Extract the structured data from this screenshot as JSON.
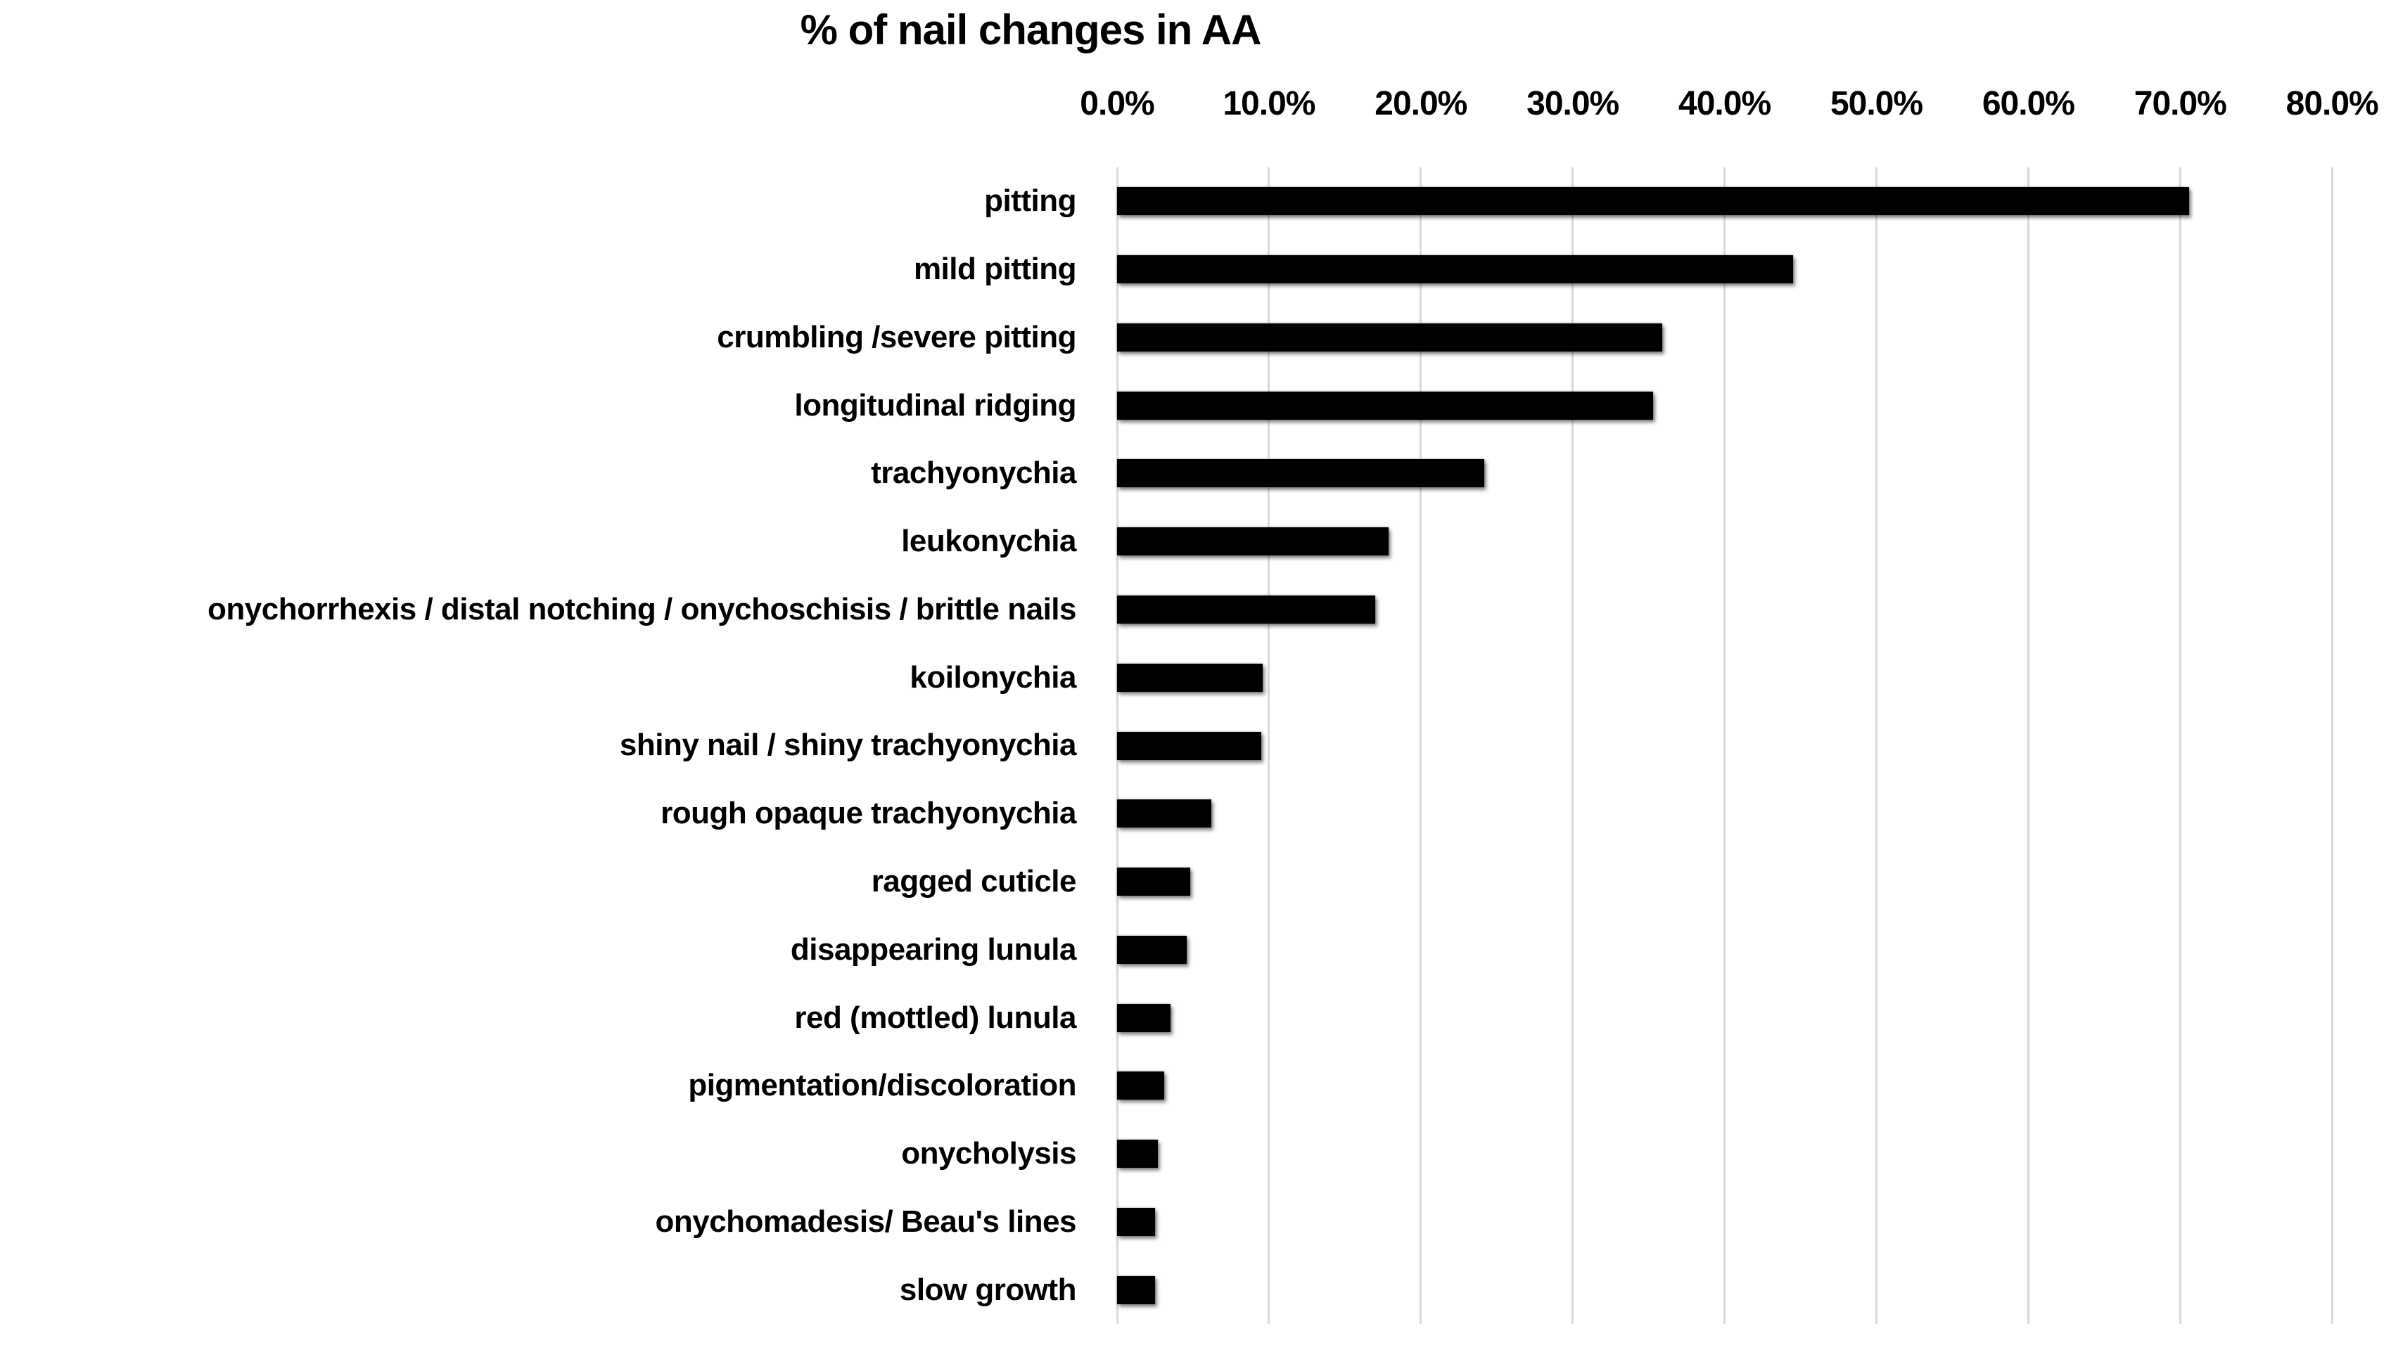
{
  "title": "% of nail changes in AA",
  "chart_data": {
    "type": "bar",
    "orientation": "horizontal",
    "title": "% of nail changes in AA",
    "categories": [
      "pitting",
      "mild pitting",
      "crumbling /severe pitting",
      "longitudinal ridging",
      "trachyonychia",
      "leukonychia",
      "onychorrhexis / distal notching / onychoschisis / brittle nails",
      "koilonychia",
      "shiny nail / shiny trachyonychia",
      "rough opaque trachyonychia",
      "ragged cuticle",
      "disappearing lunula",
      "red (mottled) lunula",
      "pigmentation/discoloration",
      "onycholysis",
      "onychomadesis/ Beau's lines",
      "slow growth"
    ],
    "values": [
      70.6,
      44.5,
      35.9,
      35.3,
      24.2,
      17.9,
      17.0,
      9.6,
      9.5,
      6.2,
      4.8,
      4.6,
      3.5,
      3.1,
      2.7,
      2.5,
      2.5
    ],
    "unit": "%",
    "xlim": [
      0,
      80
    ],
    "x_tick_labels": [
      "0.0%",
      "10.0%",
      "20.0%",
      "30.0%",
      "40.0%",
      "50.0%",
      "60.0%",
      "70.0%",
      "80.0%"
    ],
    "grid": true,
    "legend": "none",
    "bar_color": "#000000",
    "gridline_color": "#d9d9d9",
    "background_color": "#ffffff",
    "xlabel": "",
    "ylabel": ""
  }
}
